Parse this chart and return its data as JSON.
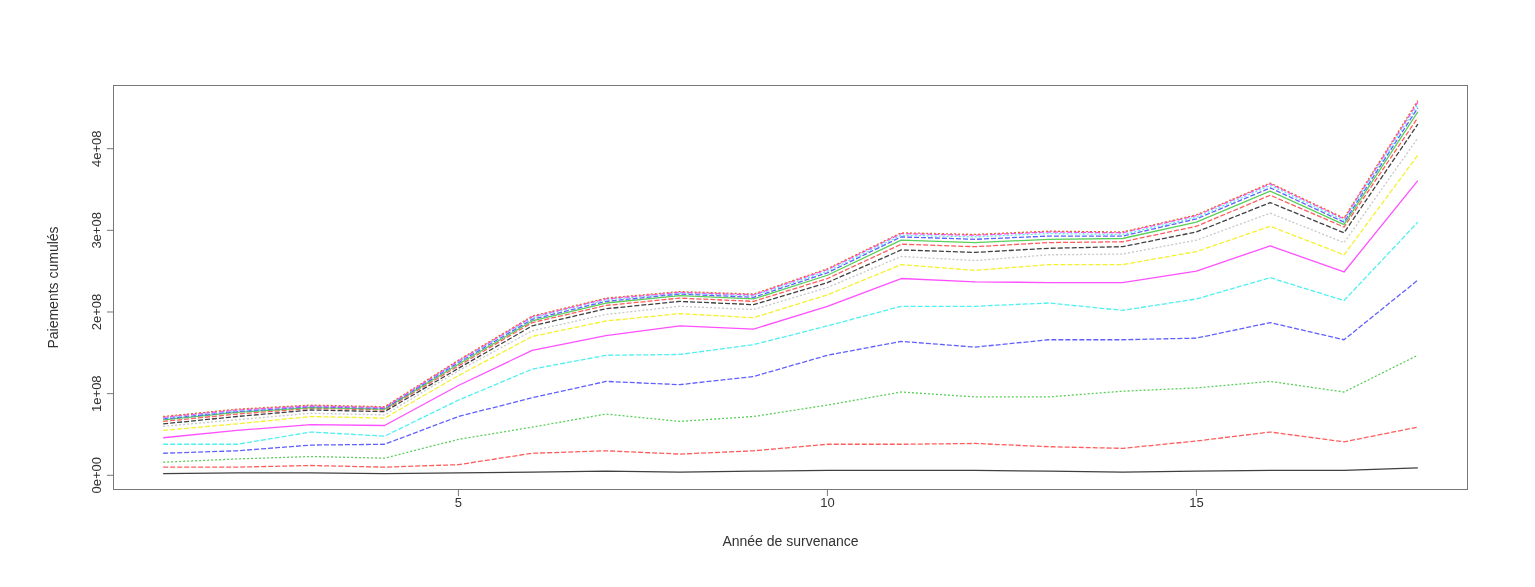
{
  "chart_data": {
    "type": "line",
    "xlabel": "Année de survenance",
    "ylabel": "Paiements cumulés",
    "x": [
      1,
      2,
      3,
      4,
      5,
      6,
      7,
      8,
      9,
      10,
      11,
      12,
      13,
      14,
      15,
      16,
      17,
      18
    ],
    "xlim": [
      0.32,
      18.68
    ],
    "xticks": [
      5,
      10,
      15
    ],
    "ylim": [
      -18000000,
      478000000
    ],
    "yticks": [
      {
        "value": 0,
        "label": "0e+00"
      },
      {
        "value": 100000000,
        "label": "1e+08"
      },
      {
        "value": 200000000,
        "label": "2e+08"
      },
      {
        "value": 300000000,
        "label": "3e+08"
      },
      {
        "value": 400000000,
        "label": "4e+08"
      }
    ],
    "grid": false,
    "legend": false,
    "marker": "none",
    "series": [
      {
        "color": "#404040",
        "line_style": "solid",
        "values": [
          2000000,
          3000000,
          3000000,
          2000000,
          3000000,
          4000000,
          5000000,
          4000000,
          5000000,
          6000000,
          6000000,
          6000000,
          5000000,
          4000000,
          5000000,
          6000000,
          6000000,
          9000000
        ]
      },
      {
        "color": "#ff5c5c",
        "line_style": "dashed",
        "values": [
          10000000,
          10000000,
          12000000,
          10000000,
          13000000,
          27000000,
          30000000,
          26000000,
          30000000,
          38000000,
          38000000,
          39000000,
          35000000,
          33000000,
          42000000,
          53000000,
          41000000,
          59000000
        ]
      },
      {
        "color": "#5ad05a",
        "line_style": "dotted",
        "values": [
          16000000,
          20000000,
          23000000,
          21000000,
          44000000,
          59000000,
          75000000,
          66000000,
          72000000,
          86000000,
          102000000,
          96000000,
          96000000,
          103000000,
          107000000,
          115000000,
          102000000,
          147000000
        ]
      },
      {
        "color": "#6060ff",
        "line_style": "dashed",
        "values": [
          27000000,
          30000000,
          37000000,
          38000000,
          72000000,
          95000000,
          115000000,
          111000000,
          121000000,
          147000000,
          164000000,
          157000000,
          166000000,
          166000000,
          168000000,
          187000000,
          166000000,
          239000000
        ]
      },
      {
        "color": "#50f0f0",
        "line_style": "dashed",
        "values": [
          38000000,
          38000000,
          53000000,
          48000000,
          92000000,
          130000000,
          147000000,
          148000000,
          160000000,
          183000000,
          207000000,
          207000000,
          211000000,
          202000000,
          216000000,
          242000000,
          214000000,
          310000000
        ]
      },
      {
        "color": "#ff50ff",
        "line_style": "solid",
        "values": [
          46000000,
          55000000,
          62000000,
          61000000,
          110000000,
          153000000,
          171000000,
          183000000,
          179000000,
          207000000,
          241000000,
          237000000,
          236000000,
          236000000,
          250000000,
          281000000,
          249000000,
          361000000
        ]
      },
      {
        "color": "#f5f030",
        "line_style": "dashed",
        "values": [
          55000000,
          63000000,
          72000000,
          70000000,
          122000000,
          170000000,
          189000000,
          198000000,
          193000000,
          221000000,
          258000000,
          251000000,
          258000000,
          258000000,
          274000000,
          305000000,
          270000000,
          392000000
        ]
      },
      {
        "color": "#c8c8c8",
        "line_style": "dotted",
        "values": [
          60000000,
          68000000,
          76000000,
          74000000,
          128000000,
          177000000,
          197000000,
          207000000,
          203000000,
          230000000,
          268000000,
          263000000,
          270000000,
          271000000,
          288000000,
          321000000,
          285000000,
          413000000
        ]
      },
      {
        "color": "#404040",
        "line_style": "dashed",
        "values": [
          63000000,
          72000000,
          80000000,
          78000000,
          131000000,
          183000000,
          204000000,
          213000000,
          209000000,
          236000000,
          276000000,
          273000000,
          278000000,
          280000000,
          298000000,
          334000000,
          297000000,
          430000000
        ]
      },
      {
        "color": "#ff5c5c",
        "line_style": "dashed",
        "values": [
          66000000,
          75000000,
          82000000,
          80000000,
          134000000,
          187000000,
          208000000,
          217000000,
          213000000,
          241000000,
          283000000,
          280000000,
          285000000,
          286000000,
          305000000,
          343000000,
          304000000,
          438000000
        ]
      },
      {
        "color": "#5ad05a",
        "line_style": "solid",
        "values": [
          68000000,
          77000000,
          83000000,
          81000000,
          136000000,
          189000000,
          211000000,
          220000000,
          216000000,
          245000000,
          288000000,
          285000000,
          289000000,
          290000000,
          310000000,
          348000000,
          307000000,
          445000000
        ]
      },
      {
        "color": "#6060ff",
        "line_style": "dashed",
        "values": [
          69000000,
          78000000,
          84000000,
          82000000,
          138000000,
          191000000,
          213000000,
          222000000,
          218000000,
          248000000,
          292000000,
          289000000,
          293000000,
          293000000,
          314000000,
          352000000,
          310000000,
          450000000
        ]
      },
      {
        "color": "#50f0f0",
        "line_style": "dotted",
        "values": [
          70000000,
          79000000,
          85000000,
          83000000,
          139000000,
          193000000,
          215000000,
          223000000,
          220000000,
          250000000,
          294000000,
          292000000,
          296000000,
          295000000,
          316000000,
          355000000,
          312000000,
          454000000
        ]
      },
      {
        "color": "#ff50ff",
        "line_style": "dashed",
        "values": [
          71000000,
          80000000,
          85000000,
          83000000,
          140000000,
          194000000,
          216000000,
          224000000,
          221000000,
          252000000,
          296000000,
          294000000,
          298000000,
          297000000,
          318000000,
          357000000,
          314000000,
          457000000
        ]
      },
      {
        "color": "#e07030",
        "line_style": "dotted",
        "values": [
          72000000,
          81000000,
          86000000,
          84000000,
          141000000,
          195000000,
          217000000,
          225000000,
          222000000,
          253000000,
          297000000,
          295000000,
          299000000,
          298000000,
          319000000,
          358000000,
          315000000,
          459000000
        ]
      }
    ]
  }
}
